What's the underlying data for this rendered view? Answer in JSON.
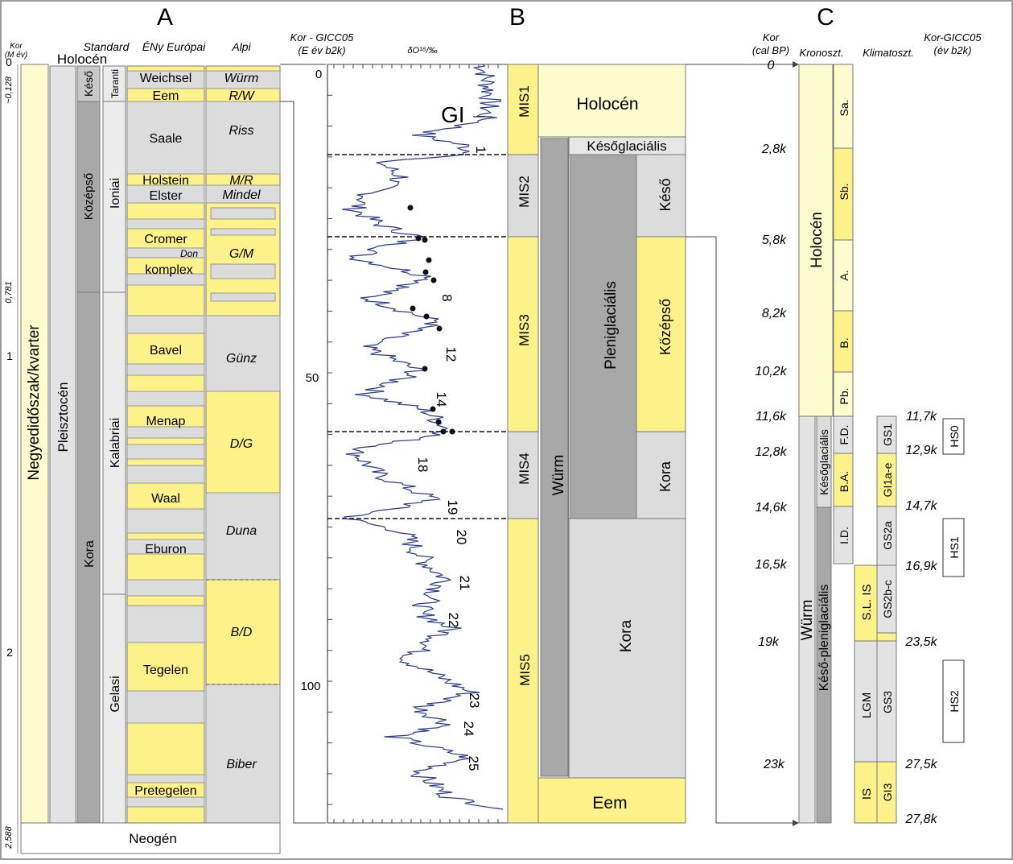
{
  "panel_titles": {
    "a": "A",
    "b": "B",
    "c": "C"
  },
  "colors": {
    "yellow": "#fdf18a",
    "pale_yellow": "#fefbcf",
    "light_gray": "#dcdcdc",
    "mid_gray": "#a8a8a8",
    "dark_gray": "#9c9c9c",
    "curve": "#2b3a8f"
  },
  "panel_a": {
    "headers": {
      "age": "Kor",
      "age_unit": "(M év)",
      "standard": "Standard",
      "nw_europe": "ÉNy Európai",
      "alpine": "Alpi"
    },
    "age_ticks": [
      "0",
      "~0,128",
      "0,781",
      "1",
      "2",
      "2,588"
    ],
    "columns": {
      "quaternary": "Negyedidőszak/kvarter",
      "holocene": "Holocén",
      "pleistocene": "Pleisztocén",
      "late": "Késő",
      "middle": "Középső",
      "early": "Kora",
      "tarantian": "Taranti",
      "ionian": "Ioniai",
      "calabrian": "Kalabriai",
      "gelasian": "Gelasi",
      "neogene": "Neogén"
    },
    "nw_europe": {
      "weichsel": "Weichsel",
      "eem": "Eem",
      "saale": "Saale",
      "holstein": "Holstein",
      "elster": "Elster",
      "cromer": "Cromer",
      "don": "Don",
      "komplex": "komplex",
      "bavel": "Bavel",
      "menap": "Menap",
      "waal": "Waal",
      "eburon": "Eburon",
      "tegelen": "Tegelen",
      "pretegelen": "Pretegelen"
    },
    "alpine": {
      "wurm": "Würm",
      "rw": "R/W",
      "riss": "Riss",
      "mr": "M/R",
      "mindel": "Mindel",
      "gm": "G/M",
      "gunz": "Günz",
      "dg": "D/G",
      "duna": "Duna",
      "bd": "B/D",
      "biber": "Biber"
    }
  },
  "panel_b": {
    "headers": {
      "age": "Kor - GICC05",
      "age_unit": "(E év b2k)",
      "proxy": "δO¹⁸/‰"
    },
    "age_ticks": [
      "0",
      "50",
      "100"
    ],
    "gi_label": "GI",
    "gi_numbers": [
      "1",
      "8",
      "12",
      "14",
      "18",
      "19",
      "20",
      "21",
      "22",
      "23",
      "24",
      "25"
    ],
    "mis": [
      "MIS1",
      "MIS2",
      "MIS3",
      "MIS4",
      "MIS5"
    ],
    "stages": {
      "holocene": "Holocén",
      "lateglacial": "Későglaciális",
      "wurm": "Würm",
      "pleniglacial": "Pleniglaciális",
      "late": "Késő",
      "middle": "Középső",
      "early_sub": "Kora",
      "early": "Kora",
      "eem": "Eem"
    }
  },
  "panel_c": {
    "headers": {
      "age": "Kor",
      "age_unit": "(cal BP)",
      "chrono": "Kronoszt.",
      "climato": "Klimatoszt.",
      "age2": "Kor-GICC05",
      "age2_unit": "(év b2k)"
    },
    "left_ticks": [
      "0",
      "2,8k",
      "5,8k",
      "8,2k",
      "10,2k",
      "11,6k",
      "12,8k",
      "14,6k",
      "16,5k",
      "19k",
      "23k"
    ],
    "right_ticks": [
      "11,7k",
      "12,9k",
      "14,7k",
      "16,9k",
      "23,5k",
      "27,5k",
      "27,8k"
    ],
    "columns": {
      "holocene": "Holocén",
      "wurm": "Würm",
      "late_pleniglacial": "Késő-pleniglaciális",
      "lateglacial": "Későglaciális",
      "sa": "Sa.",
      "sb": "Sb.",
      "a": "A.",
      "b": "B.",
      "pb": "Pb.",
      "fd": "F.D.",
      "ba": "B.A.",
      "id": "I.D.",
      "slis": "S.L. IS",
      "lgm": "LGM",
      "is": "IS",
      "gs1": "GS1",
      "gi1ae": "GI1a-e",
      "gs2a": "GS2a",
      "gs2bc": "GS2b-c",
      "gs3": "GS3",
      "gi3": "GI3"
    },
    "heinrich": [
      "HS0",
      "HS1",
      "HS2"
    ]
  }
}
